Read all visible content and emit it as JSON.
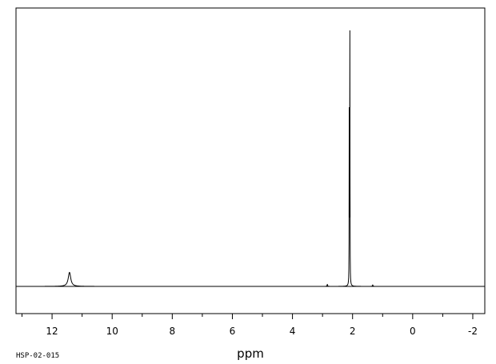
{
  "chart_data": {
    "type": "line",
    "title": "",
    "xlabel": "ppm",
    "ylabel": "",
    "xlim": [
      13.2,
      -2.4
    ],
    "x_reversed": true,
    "ylim": [
      0,
      1
    ],
    "grid": false,
    "legend": "none",
    "x_ticks": [
      12,
      10,
      8,
      6,
      4,
      2,
      0,
      -2
    ],
    "x_tick_labels": [
      "12",
      "10",
      "8",
      "6",
      "4",
      "2",
      "0",
      "-2"
    ],
    "x_minor_ticks": [
      13,
      11,
      9,
      7,
      5,
      3,
      1,
      -1
    ],
    "peaks": [
      {
        "ppm": 11.42,
        "intensity": 0.055,
        "width": 0.05
      },
      {
        "ppm": 2.84,
        "intensity": 0.008,
        "width": 0.01
      },
      {
        "ppm": 2.09,
        "intensity": 1.0,
        "width": 0.004
      },
      {
        "ppm": 2.11,
        "intensity": 0.7,
        "width": 0.004
      },
      {
        "ppm": 1.33,
        "intensity": 0.006,
        "width": 0.01
      }
    ],
    "sample_id": "HSP-02-015",
    "line_color": "#000000"
  }
}
